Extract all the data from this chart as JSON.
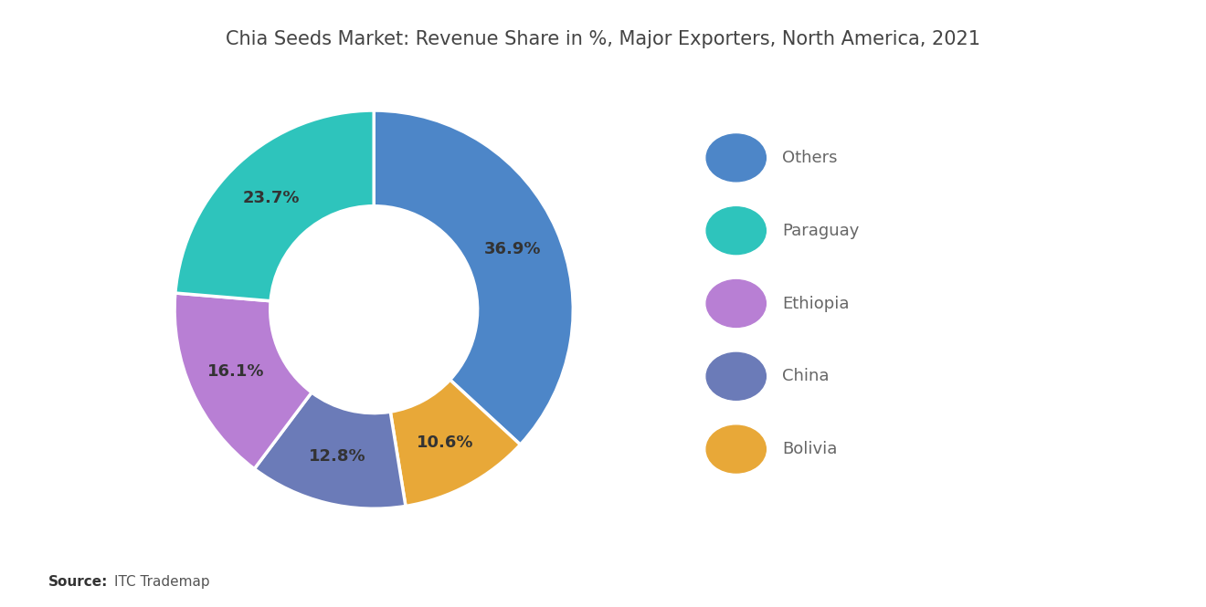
{
  "title": "Chia Seeds Market: Revenue Share in %, Major Exporters, North America, 2021",
  "labels": [
    "Others",
    "Bolivia",
    "China",
    "Ethiopia",
    "Paraguay"
  ],
  "values": [
    36.9,
    10.6,
    12.8,
    16.1,
    23.7
  ],
  "colors": [
    "#4D86C8",
    "#E8A838",
    "#6B7BB8",
    "#B87FD4",
    "#2EC4BC"
  ],
  "pct_labels": [
    "36.9%",
    "10.6%",
    "12.8%",
    "16.1%",
    "23.7%"
  ],
  "legend_labels": [
    "Others",
    "Paraguay",
    "Ethiopia",
    "China",
    "Bolivia"
  ],
  "legend_colors": [
    "#4D86C8",
    "#2EC4BC",
    "#B87FD4",
    "#6B7BB8",
    "#E8A838"
  ],
  "source_bold": "Source:",
  "source_normal": "  ITC Trademap",
  "background_color": "#FFFFFF",
  "title_fontsize": 15,
  "label_fontsize": 13,
  "label_color": "#333333",
  "legend_fontsize": 13,
  "legend_text_color": "#666666"
}
